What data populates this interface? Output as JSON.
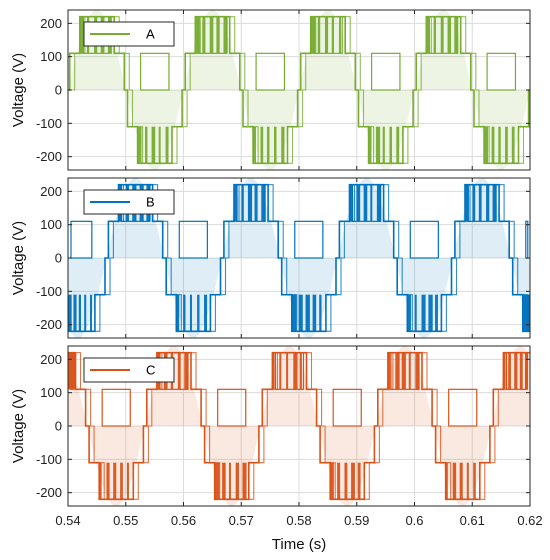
{
  "chart_data": [
    {
      "type": "line",
      "ylabel": "Voltage (V)",
      "xlim": [
        0.54,
        0.62
      ],
      "ylim": [
        -240,
        240
      ],
      "yticks": [
        -200,
        -100,
        0,
        100,
        200
      ],
      "grid": true,
      "legend_placement": "top-left",
      "phase_shift_deg": 0,
      "series": [
        {
          "name": "A",
          "color": "#77ac30",
          "x": [
            0.54,
            0.62
          ]
        }
      ]
    },
    {
      "type": "line",
      "ylabel": "Voltage (V)",
      "xlim": [
        0.54,
        0.62
      ],
      "ylim": [
        -240,
        240
      ],
      "yticks": [
        -200,
        -100,
        0,
        100,
        200
      ],
      "grid": true,
      "legend_placement": "top-left",
      "phase_shift_deg": -120,
      "series": [
        {
          "name": "B",
          "color": "#0072bd",
          "x": [
            0.54,
            0.62
          ]
        }
      ]
    },
    {
      "type": "line",
      "ylabel": "Voltage (V)",
      "xlabel": "Time (s)",
      "xlim": [
        0.54,
        0.62
      ],
      "ylim": [
        -240,
        240
      ],
      "yticks": [
        -200,
        -100,
        0,
        100,
        200
      ],
      "xticks": [
        0.54,
        0.55,
        0.56,
        0.57,
        0.58,
        0.59,
        0.6,
        0.61,
        0.62
      ],
      "grid": true,
      "legend_placement": "top-left",
      "phase_shift_deg": 120,
      "series": [
        {
          "name": "C",
          "color": "#d95319",
          "x": [
            0.54,
            0.62
          ]
        }
      ]
    }
  ],
  "waveform": {
    "frequency_hz": 50,
    "levels": [
      -220,
      -110,
      0,
      110,
      220
    ],
    "envelope_amplitude": 240
  }
}
